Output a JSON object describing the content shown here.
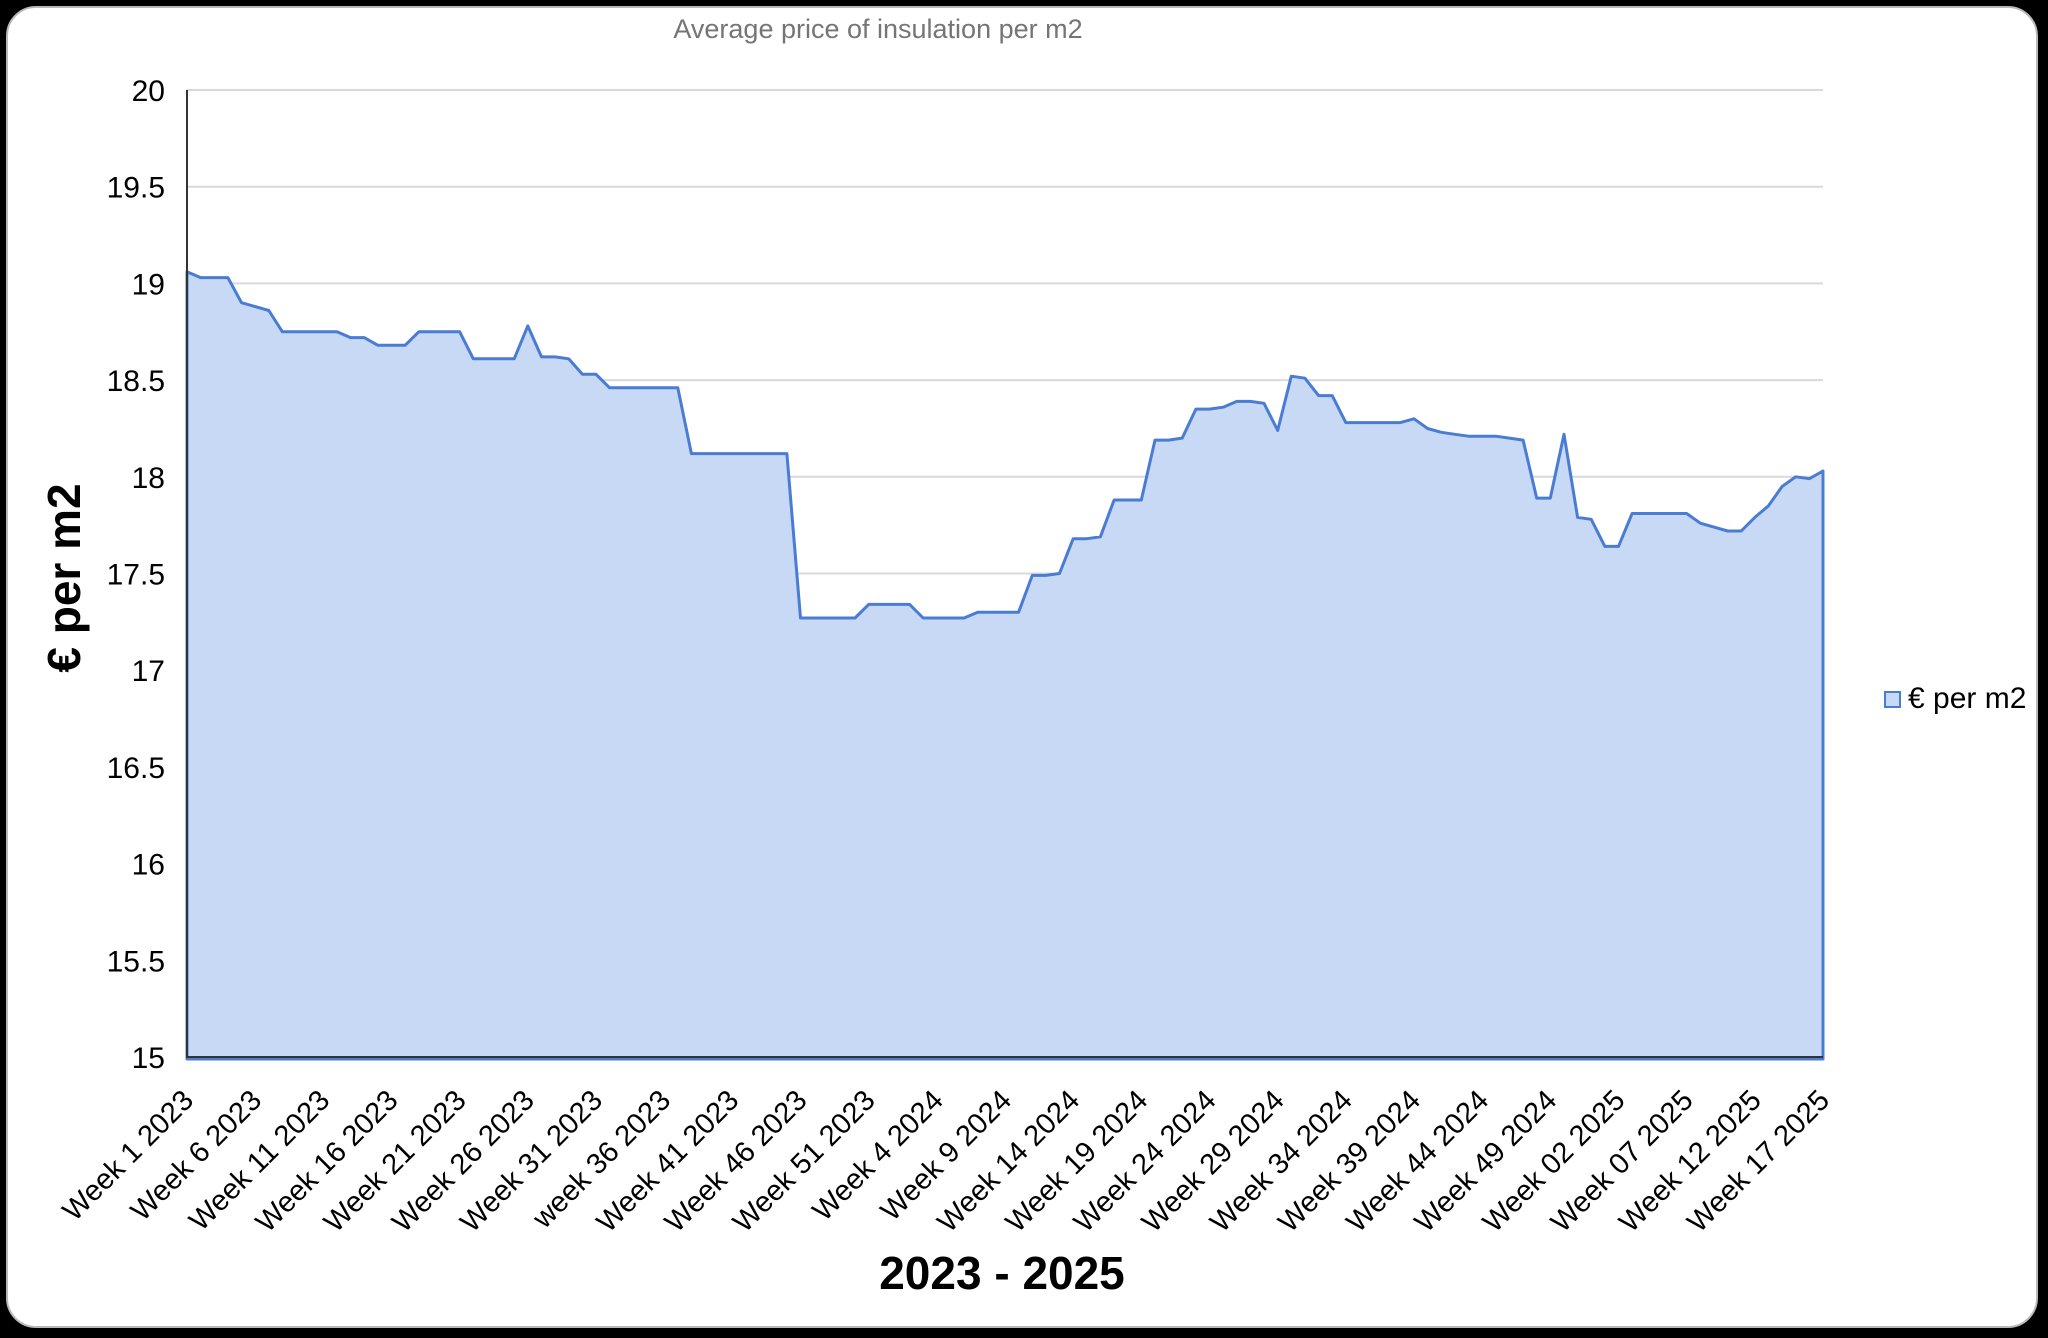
{
  "window": {
    "background_color": "#000000",
    "card_color": "#ffffff"
  },
  "chart": {
    "title": "Average price of insulation per m2",
    "y_axis_title": "€ per m2",
    "x_axis_title": "2023 - 2025",
    "legend_label": "€ per m2",
    "colors": {
      "line": "#4a7cd4",
      "fill": "#c8d9f6",
      "grid": "#d9d9d9",
      "axis": "#333333",
      "title_text": "#757575",
      "tick_text": "#000000"
    }
  },
  "chart_data": {
    "type": "area",
    "title": "Average price of insulation per m2",
    "xlabel": "2023 - 2025",
    "ylabel": "€ per m2",
    "ylim": [
      15,
      20
    ],
    "y_ticks": [
      15,
      15.5,
      16,
      16.5,
      17,
      17.5,
      18,
      18.5,
      19,
      19.5,
      20
    ],
    "grid": "horizontal-only",
    "legend_position": "right",
    "points_per_x_tick": 5,
    "x_tick_labels": [
      "Week 1 2023",
      "Week 6 2023",
      "Week 11 2023",
      "Week 16 2023",
      "Week 21 2023",
      "Week 26 2023",
      "Week 31 2023",
      "week 36 2023",
      "Week 41 2023",
      "Week 46 2023",
      "Week 51 2023",
      "Week 4 2024",
      "Week 9 2024",
      "Week 14 2024",
      "Week 19 2024",
      "Week 24 2024",
      "Week 29 2024",
      "Week 34 2024",
      "Week 39 2024",
      "Week 44 2024",
      "Week 49 2024",
      "Week 02 2025",
      "Week 07 2025",
      "Week 12 2025",
      "Week 17 2025"
    ],
    "series": [
      {
        "name": "€ per m2",
        "values": [
          19.06,
          19.03,
          19.03,
          19.03,
          18.9,
          18.88,
          18.86,
          18.75,
          18.75,
          18.75,
          18.75,
          18.75,
          18.72,
          18.72,
          18.68,
          18.68,
          18.68,
          18.75,
          18.75,
          18.75,
          18.75,
          18.61,
          18.61,
          18.61,
          18.61,
          18.78,
          18.62,
          18.62,
          18.61,
          18.53,
          18.53,
          18.46,
          18.46,
          18.46,
          18.46,
          18.46,
          18.46,
          18.12,
          18.12,
          18.12,
          18.12,
          18.12,
          18.12,
          18.12,
          18.12,
          17.27,
          17.27,
          17.27,
          17.27,
          17.27,
          17.34,
          17.34,
          17.34,
          17.34,
          17.27,
          17.27,
          17.27,
          17.27,
          17.3,
          17.3,
          17.3,
          17.3,
          17.49,
          17.49,
          17.5,
          17.68,
          17.68,
          17.69,
          17.88,
          17.88,
          17.88,
          18.19,
          18.19,
          18.2,
          18.35,
          18.35,
          18.36,
          18.39,
          18.39,
          18.38,
          18.24,
          18.52,
          18.51,
          18.42,
          18.42,
          18.28,
          18.28,
          18.28,
          18.28,
          18.28,
          18.3,
          18.25,
          18.23,
          18.22,
          18.21,
          18.21,
          18.21,
          18.2,
          18.19,
          17.89,
          17.89,
          18.22,
          17.79,
          17.78,
          17.64,
          17.64,
          17.81,
          17.81,
          17.81,
          17.81,
          17.81,
          17.76,
          17.74,
          17.72,
          17.72,
          17.79,
          17.85,
          17.95,
          18.0,
          17.99,
          18.03
        ]
      }
    ]
  }
}
